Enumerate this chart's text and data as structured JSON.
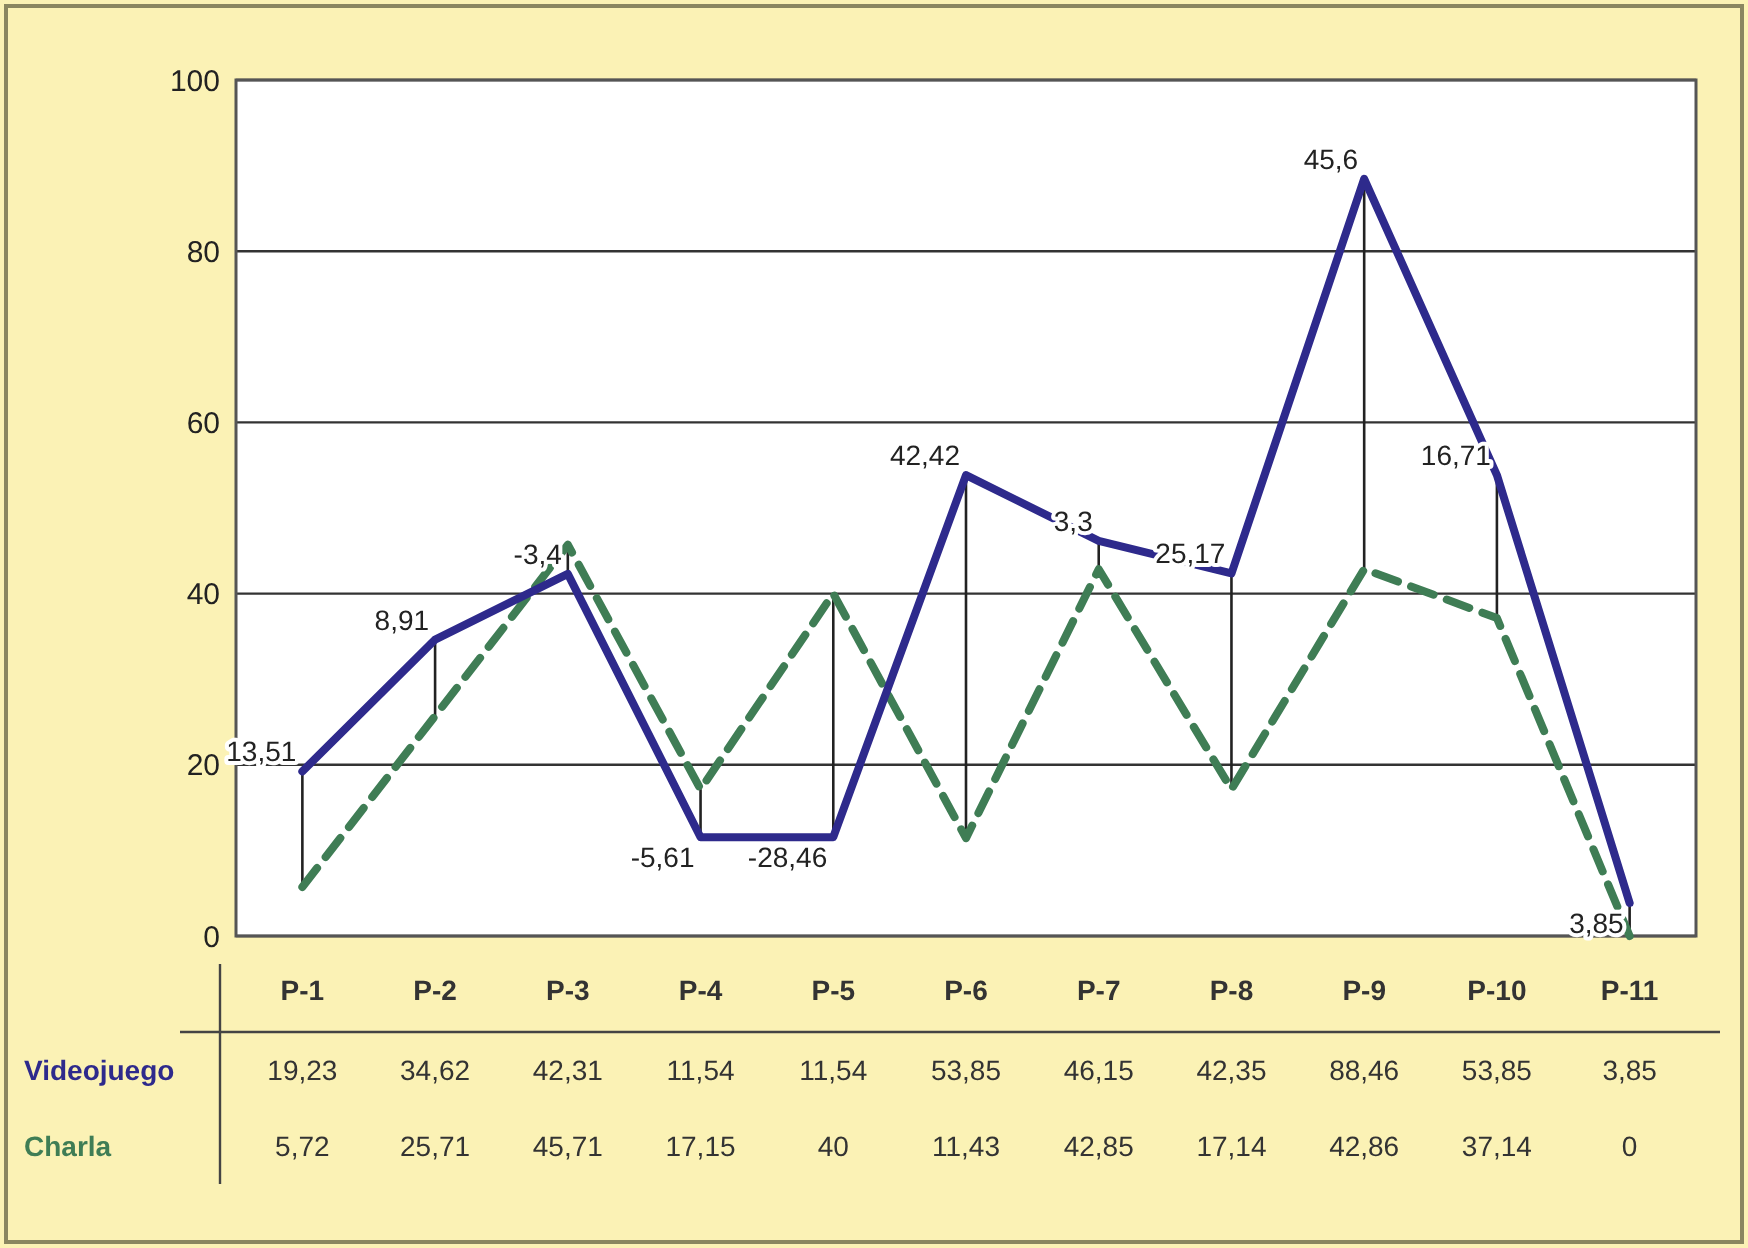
{
  "chart_data": {
    "type": "line",
    "categories": [
      "P-1",
      "P-2",
      "P-3",
      "P-4",
      "P-5",
      "P-6",
      "P-7",
      "P-8",
      "P-9",
      "P-10",
      "P-11"
    ],
    "series": [
      {
        "name": "Videojuego",
        "color": "#2e2a8c",
        "line_style": "solid",
        "values": [
          19.23,
          34.62,
          42.31,
          11.54,
          11.54,
          53.85,
          46.15,
          42.35,
          88.46,
          53.85,
          3.85
        ],
        "value_labels": [
          "19,23",
          "34,62",
          "42,31",
          "11,54",
          "11,54",
          "53,85",
          "46,15",
          "42,35",
          "88,46",
          "53,85",
          "3,85"
        ]
      },
      {
        "name": "Charla",
        "color": "#3f7d55",
        "line_style": "dashed",
        "values": [
          5.72,
          25.71,
          45.71,
          17.15,
          40,
          11.43,
          42.85,
          17.14,
          42.86,
          37.14,
          0
        ],
        "value_labels": [
          "5,72",
          "25,71",
          "45,71",
          "17,15",
          "40",
          "11,43",
          "42,85",
          "17,14",
          "42,86",
          "37,14",
          "0"
        ]
      }
    ],
    "ylim": [
      0,
      100
    ],
    "yticks": [
      0,
      20,
      40,
      60,
      80,
      100
    ],
    "grid": "y",
    "marker": "none",
    "legend": false,
    "annotations": [
      {
        "text": "13,51",
        "x": "P-1",
        "y": 19.23
      },
      {
        "text": "8,91",
        "x": "P-2",
        "y": 34.62
      },
      {
        "text": "-3,4",
        "x": "P-3",
        "y": 42.31
      },
      {
        "text": "-5,61",
        "x": "P-4",
        "y": 11.54
      },
      {
        "text": "-28,46",
        "x": "P-5",
        "y": 11.54
      },
      {
        "text": "42,42",
        "x": "P-6",
        "y": 53.85
      },
      {
        "text": "3,3",
        "x": "P-7",
        "y": 46.15
      },
      {
        "text": "25,17",
        "x": "P-8",
        "y": 42.35
      },
      {
        "text": "45,6",
        "x": "P-9",
        "y": 88.46
      },
      {
        "text": "16,71",
        "x": "P-10",
        "y": 53.85
      },
      {
        "text": "3,85",
        "x": "P-11",
        "y": 3.85
      }
    ]
  }
}
